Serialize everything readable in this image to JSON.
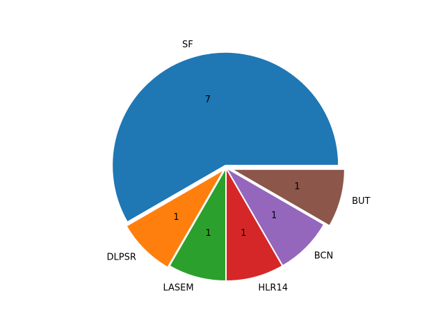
{
  "chart_data": {
    "type": "pie",
    "categories": [
      "SF",
      "DLPSR",
      "LASEM",
      "HLR14",
      "BCN",
      "BUT"
    ],
    "values": [
      7,
      1,
      1,
      1,
      1,
      1
    ],
    "value_labels": [
      "7",
      "1",
      "1",
      "1",
      "1",
      "1"
    ],
    "colors": [
      "#1f77b4",
      "#ff7f0e",
      "#2ca02c",
      "#d62728",
      "#9467bd",
      "#8c564b"
    ],
    "explode": [
      0.02,
      0.02,
      0,
      0,
      0,
      0.05
    ],
    "start_angle_deg": 0,
    "direction": "counterclockwise",
    "grid": false,
    "legend": "none"
  }
}
